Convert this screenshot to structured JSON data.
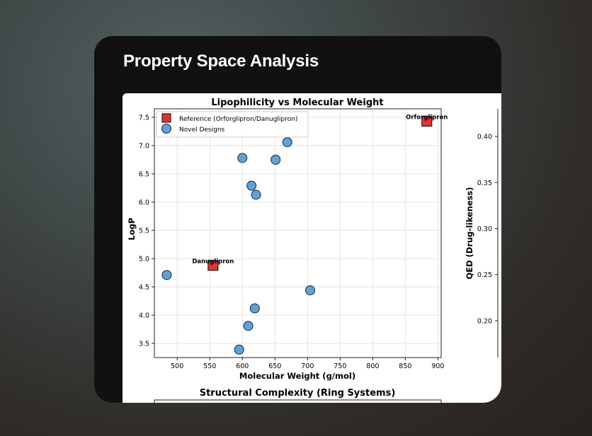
{
  "card": {
    "title": "Property Space Analysis"
  },
  "chart_data": [
    {
      "type": "scatter",
      "title": "Lipophilicity vs Molecular Weight",
      "xlabel": "Molecular Weight (g/mol)",
      "ylabel": "LogP",
      "xlim": [
        465,
        905
      ],
      "ylim": [
        3.25,
        7.65
      ],
      "xticks": [
        500,
        550,
        600,
        650,
        700,
        750,
        800,
        850,
        900
      ],
      "yticks": [
        3.5,
        4.0,
        4.5,
        5.0,
        5.5,
        6.0,
        6.5,
        7.0,
        7.5
      ],
      "grid": true,
      "legend_position": "top-left",
      "series": [
        {
          "name": "Reference (Orforglipron/Danuglipron)",
          "marker": "square",
          "color": "#e8302f",
          "points": [
            {
              "x": 883,
              "y": 7.43,
              "label": "Orforglipron"
            },
            {
              "x": 555,
              "y": 4.88,
              "label": "Danuglipron"
            }
          ]
        },
        {
          "name": "Novel Designs",
          "marker": "circle",
          "color": "#5ba3e0",
          "points": [
            {
              "x": 669,
              "y": 7.06
            },
            {
              "x": 600,
              "y": 6.78
            },
            {
              "x": 651,
              "y": 6.75
            },
            {
              "x": 614,
              "y": 6.29
            },
            {
              "x": 621,
              "y": 6.13
            },
            {
              "x": 484,
              "y": 4.71
            },
            {
              "x": 704,
              "y": 4.44
            },
            {
              "x": 619,
              "y": 4.12
            },
            {
              "x": 609,
              "y": 3.81
            },
            {
              "x": 595,
              "y": 3.39
            }
          ]
        }
      ]
    },
    {
      "type": "scatter",
      "ylabel": "QED (Drug-likeness)",
      "ylim": [
        0.16,
        0.43
      ],
      "yticks": [
        0.2,
        0.25,
        0.3,
        0.35,
        0.4
      ],
      "ytick_labels": [
        "0.20",
        "0.25",
        "0.30",
        "0.35",
        "0.40"
      ]
    },
    {
      "type": "bar",
      "title": "Structural Complexity (Ring Systems)"
    }
  ]
}
